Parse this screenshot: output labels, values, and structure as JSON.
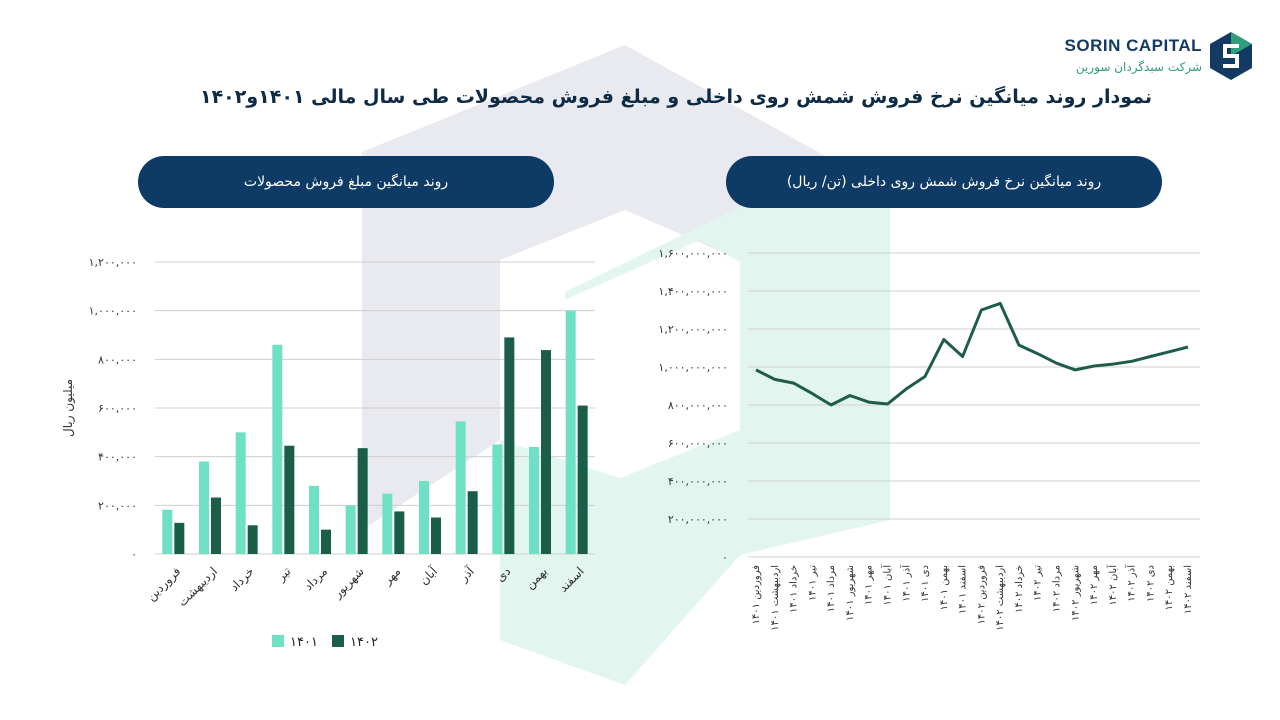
{
  "header": {
    "title": "نمودار روند میانگین نرخ فروش شمش روی داخلی و مبلغ فروش محصولات طی سال مالی ۱۴۰۱و۱۴۰۲",
    "logo_main": "SORIN CAPITAL",
    "logo_sub": "شرکت سبدگردان سورین"
  },
  "colors": {
    "navy": "#0d3b66",
    "mint": "#6fe0c4",
    "dark_green": "#1a5e4a",
    "line": "#1f5d4b",
    "grid": "#cfcfcf"
  },
  "chart_data": [
    {
      "type": "bar",
      "title": "روند میانگین مبلغ فروش محصولات",
      "ylabel": "میلیون ریال",
      "ylim": [
        0,
        1200000
      ],
      "yticks": [
        "۰",
        "۲۰۰,۰۰۰",
        "۴۰۰,۰۰۰",
        "۶۰۰,۰۰۰",
        "۸۰۰,۰۰۰",
        "۱,۰۰۰,۰۰۰",
        "۱,۲۰۰,۰۰۰"
      ],
      "ytick_values": [
        0,
        200000,
        400000,
        600000,
        800000,
        1000000,
        1200000
      ],
      "categories": [
        "فروردین",
        "اردیبهشت",
        "خرداد",
        "تیر",
        "مرداد",
        "شهریور",
        "مهر",
        "آبان",
        "آذر",
        "دی",
        "بهمن",
        "اسفند"
      ],
      "series": [
        {
          "name": "۱۴۰۱",
          "color": "#6fe0c4",
          "values": [
            182000,
            380000,
            500000,
            860000,
            280000,
            200000,
            248000,
            300000,
            545000,
            450000,
            440000,
            1000000
          ]
        },
        {
          "name": "۱۴۰۲",
          "color": "#1a5e4a",
          "values": [
            128000,
            232000,
            118000,
            445000,
            100000,
            435000,
            175000,
            150000,
            258000,
            890000,
            838000,
            610000
          ]
        }
      ],
      "legend": "bottom"
    },
    {
      "type": "line",
      "title": "روند میانگین نرخ فروش شمش روی داخلی (تن/ ریال)",
      "ylim": [
        0,
        1600000000
      ],
      "yticks": [
        "۰",
        "۲۰۰,۰۰۰,۰۰۰",
        "۴۰۰,۰۰۰,۰۰۰",
        "۶۰۰,۰۰۰,۰۰۰",
        "۸۰۰,۰۰۰,۰۰۰",
        "۱,۰۰۰,۰۰۰,۰۰۰",
        "۱,۲۰۰,۰۰۰,۰۰۰",
        "۱,۴۰۰,۰۰۰,۰۰۰",
        "۱,۶۰۰,۰۰۰,۰۰۰"
      ],
      "ytick_values": [
        0,
        200000000,
        400000000,
        600000000,
        800000000,
        1000000000,
        1200000000,
        1400000000,
        1600000000
      ],
      "categories": [
        "فروردین ۱۴۰۱",
        "اردیبهشت ۱۴۰۱",
        "خرداد ۱۴۰۱",
        "تیر ۱۴۰۱",
        "مرداد ۱۴۰۱",
        "شهریور ۱۴۰۱",
        "مهر ۱۴۰۱",
        "آبان ۱۴۰۱",
        "آذر ۱۴۰۱",
        "دی ۱۴۰۱",
        "بهمن ۱۴۰۱",
        "اسفند ۱۴۰۱",
        "فروردین ۱۴۰۲",
        "اردیبهشت ۱۴۰۲",
        "خرداد ۱۴۰۲",
        "تیر ۱۴۰۲",
        "مرداد ۱۴۰۲",
        "شهریور ۱۴۰۲",
        "مهر ۱۴۰۲",
        "آبان ۱۴۰۲",
        "آذر ۱۴۰۲",
        "دی ۱۴۰۲",
        "بهمن ۱۴۰۲",
        "اسفند ۱۴۰۲"
      ],
      "series": [
        {
          "values": [
            985000000,
            935000000,
            915000000,
            860000000,
            800000000,
            850000000,
            815000000,
            805000000,
            885000000,
            950000000,
            1145000000,
            1055000000,
            1300000000,
            1335000000,
            1115000000,
            1070000000,
            1020000000,
            985000000,
            1005000000,
            1015000000,
            1030000000,
            1055000000,
            1080000000,
            1105000000
          ]
        }
      ]
    }
  ]
}
